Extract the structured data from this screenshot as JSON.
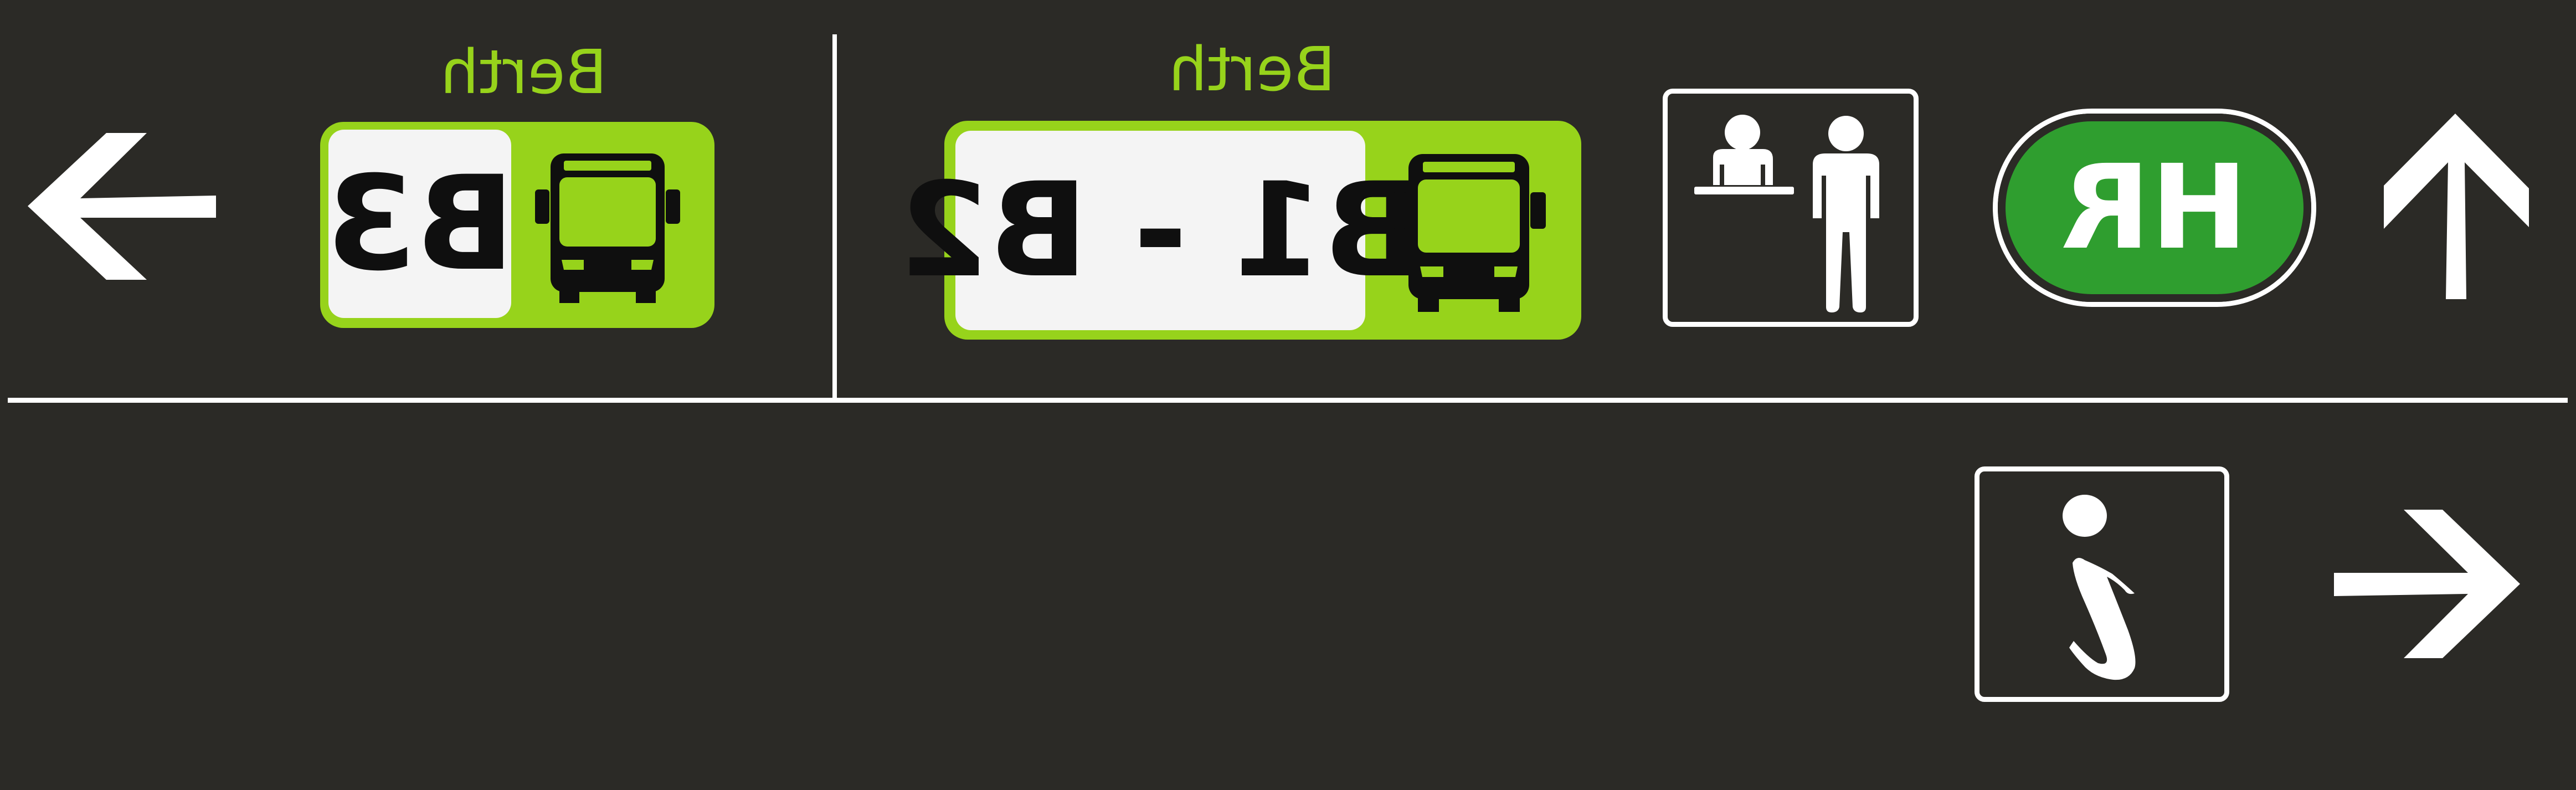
{
  "colors": {
    "background": "#2b2a26",
    "berth_green": "#97d31b",
    "hr_green": "#2f9e2f",
    "code_panel": "#f4f4f4",
    "line_white": "#ffffff"
  },
  "left_section": {
    "berth_label": "Berth",
    "berth_code": "B3",
    "direction": "left",
    "icons": [
      "arrow-left-icon",
      "bus-icon"
    ]
  },
  "middle_section": {
    "berth_label": "Berth",
    "berth_code": "B1 - B2",
    "icons": [
      "bus-icon",
      "reception-desk-icon",
      "arrow-up-icon"
    ],
    "hr_badge": "HR"
  },
  "lower_section": {
    "icons": [
      "information-icon",
      "arrow-right-icon"
    ]
  }
}
